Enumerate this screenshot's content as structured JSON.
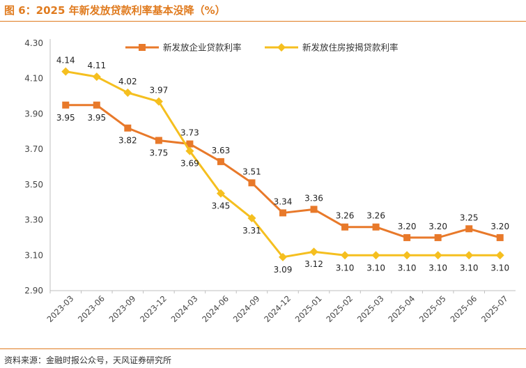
{
  "header": {
    "title": "图 6：2025 年新发放贷款利率基本没降（%）"
  },
  "footer": {
    "source": "资料来源：金融时报公众号，天风证券研究所"
  },
  "colors": {
    "accent": "#e07b1f",
    "series1": "#e8792a",
    "series2": "#f5bf1f"
  },
  "chart_data": {
    "type": "line",
    "title": "2025 年新发放贷款利率基本没降（%）",
    "xlabel": "",
    "ylabel": "",
    "ylim": [
      2.9,
      4.3
    ],
    "yticks": [
      "2.90",
      "3.10",
      "3.30",
      "3.50",
      "3.70",
      "3.90",
      "4.10",
      "4.30"
    ],
    "grid": false,
    "legend_position": "top",
    "categories": [
      "2023-03",
      "2023-06",
      "2023-09",
      "2023-12",
      "2024-03",
      "2024-06",
      "2024-09",
      "2024-12",
      "2025-01",
      "2025-02",
      "2025-03",
      "2025-04",
      "2025-05",
      "2025-06",
      "2025-07"
    ],
    "series": [
      {
        "name": "新发放企业贷款利率",
        "marker": "square",
        "values": [
          3.95,
          3.95,
          3.82,
          3.75,
          3.73,
          3.63,
          3.51,
          3.34,
          3.36,
          3.26,
          3.26,
          3.2,
          3.2,
          3.25,
          3.2
        ],
        "labels": [
          "3.95",
          "3.95",
          "3.82",
          "3.75",
          "3.73",
          "3.63",
          "3.51",
          "3.34",
          "3.36",
          "3.26",
          "3.26",
          "3.20",
          "3.20",
          "3.25",
          "3.20"
        ]
      },
      {
        "name": "新发放住房按揭贷款利率",
        "marker": "diamond",
        "values": [
          4.14,
          4.11,
          4.02,
          3.97,
          3.69,
          3.45,
          3.31,
          3.09,
          3.12,
          3.1,
          3.1,
          3.1,
          3.1,
          3.1,
          3.1
        ],
        "labels": [
          "4.14",
          "4.11",
          "4.02",
          "3.97",
          "3.69",
          "3.45",
          "3.31",
          "3.09",
          "3.12",
          "3.10",
          "3.10",
          "3.10",
          "3.10",
          "3.10",
          "3.10"
        ]
      }
    ]
  }
}
